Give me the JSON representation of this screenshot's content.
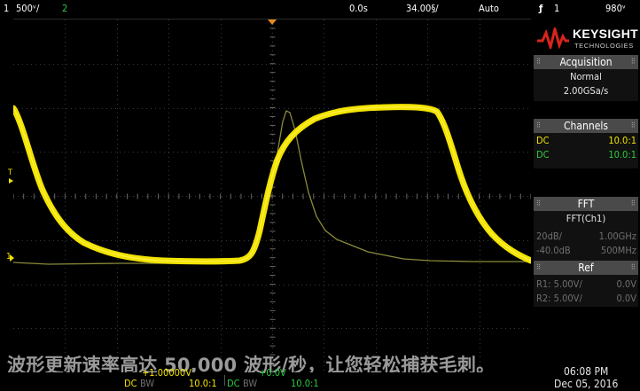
{
  "status_bar": {
    "ch1_number": "1",
    "ch1_scale": "500ᵛ/",
    "ch2_number": "2",
    "horizontal_position": "0.0s",
    "horizontal_scale": "34.00§/",
    "trigger_mode": "Auto",
    "trigger_icon": "ƒ",
    "trigger_channel": "1",
    "trigger_level": "980ᵛ"
  },
  "brand": {
    "name": "KEYSIGHT",
    "subtitle": "TECHNOLOGIES"
  },
  "acquisition": {
    "header": "Acquisition",
    "mode": "Normal",
    "sample_rate": "2.00GSa/s"
  },
  "channels": {
    "header": "Channels",
    "rows": [
      {
        "coupling": "DC",
        "probe": "10.0:1",
        "color": "#f3e400"
      },
      {
        "coupling": "DC",
        "probe": "10.0:1",
        "color": "#2ecc40"
      }
    ]
  },
  "fft": {
    "header": "FFT",
    "source": "FFT(Ch1)",
    "rows": [
      {
        "left": "20dB/",
        "right": "1.00GHz"
      },
      {
        "left": "-40.0dB",
        "right": "500MHz"
      }
    ]
  },
  "ref": {
    "header": "Ref",
    "rows": [
      {
        "left": "R1:  5.00V/",
        "right": "0.0V"
      },
      {
        "left": "R2:  5.00V/",
        "right": "0.0V"
      }
    ]
  },
  "caption": "波形更新速率高达 50,000 波形/秒，让您轻松捕获毛刺。",
  "bottom_bar": {
    "ch1_offset": "+1.00000V",
    "ch2_offset": "+0.0V",
    "ch1_coupling": "DC",
    "ch1_bw": "BW",
    "ch1_probe": "10.0:1",
    "ch2_coupling": "DC",
    "ch2_bw": "BW",
    "ch2_probe": "10.0:1",
    "time": "06:08 PM",
    "date": "Dec 05, 2016"
  },
  "markers": {
    "trigger_level": "T",
    "ch1_ground": "1"
  },
  "colors": {
    "ch1": "#f3e400",
    "ch2": "#2ecc40",
    "fft": "#8a8a3a",
    "grid": "#3a3a3a",
    "panel_header": "#4a4a4a"
  }
}
